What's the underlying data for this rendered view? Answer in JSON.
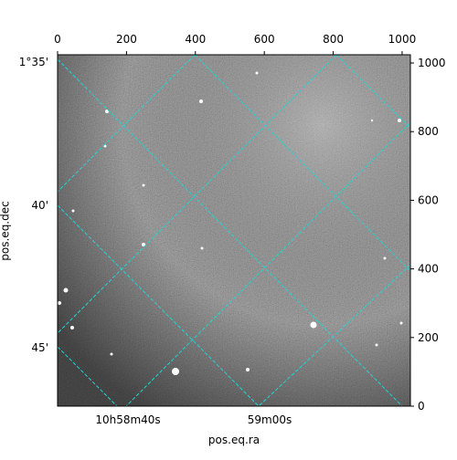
{
  "chart_data": {
    "type": "image",
    "xlabel": "pos.eq.ra",
    "ylabel": "pos.eq.dec",
    "xlim": [
      0,
      1024
    ],
    "ylim": [
      0,
      1024
    ],
    "xticks": [
      0,
      200,
      400,
      600,
      800,
      1000
    ],
    "yticks": [
      0,
      200,
      400,
      600,
      800,
      1000
    ],
    "ra_ticks": [
      "10h58m40s",
      "59m00s"
    ],
    "dec_ticks": [
      "1°35'",
      "40'",
      "45'"
    ]
  }
}
